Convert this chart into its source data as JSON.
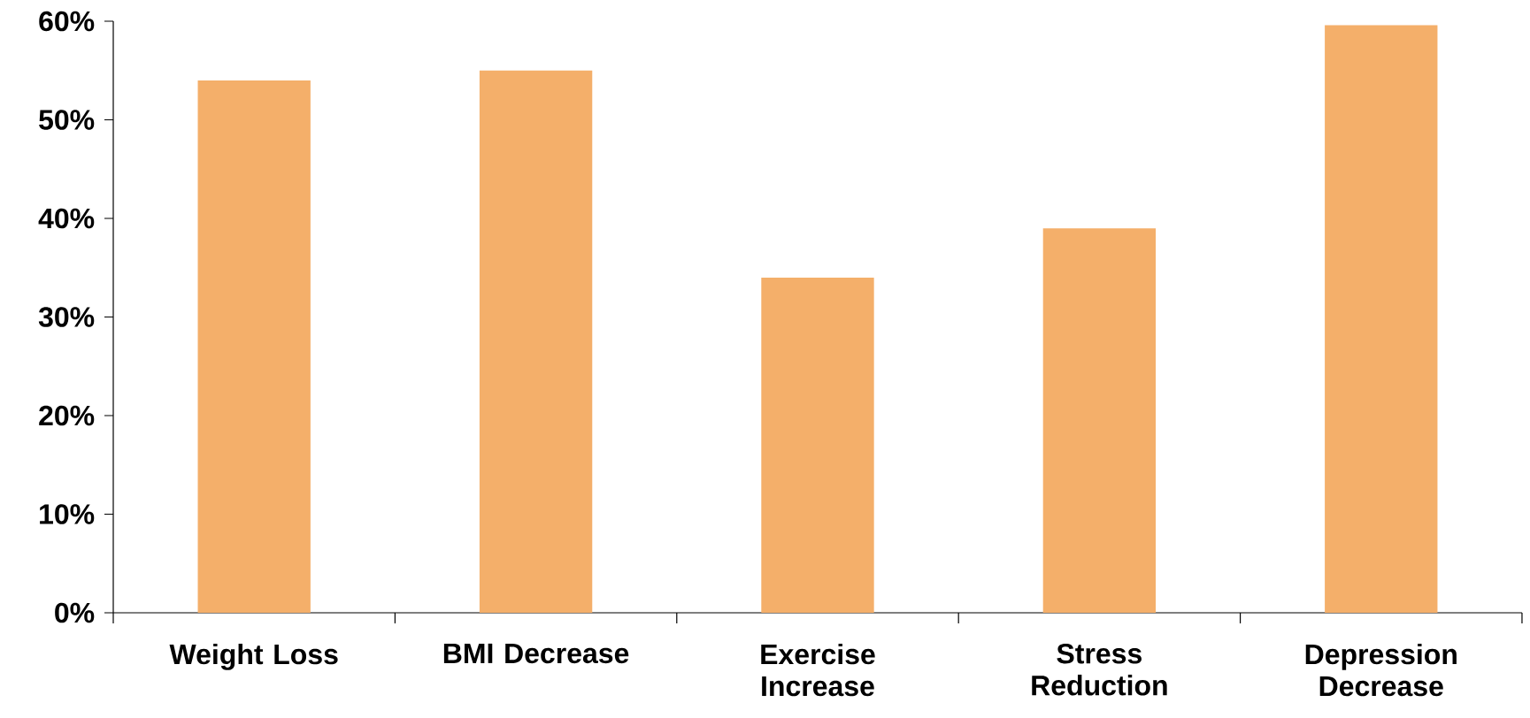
{
  "chart_data": {
    "type": "bar",
    "categories": [
      "Weight Loss",
      "BMI Decrease",
      "Exercise Increase",
      "Stress Reduction",
      "Depression Decrease"
    ],
    "values": [
      54,
      55,
      34,
      39,
      59.6
    ],
    "color": "#f4af6a",
    "ylim": [
      0,
      60
    ],
    "yticks": [
      {
        "value": 0,
        "label": "0%"
      },
      {
        "value": 10,
        "label": "10%"
      },
      {
        "value": 20,
        "label": "20%"
      },
      {
        "value": 30,
        "label": "30%"
      },
      {
        "value": 40,
        "label": "40%"
      },
      {
        "value": 50,
        "label": "50%"
      },
      {
        "value": 60,
        "label": "60%"
      }
    ],
    "grid": false
  }
}
